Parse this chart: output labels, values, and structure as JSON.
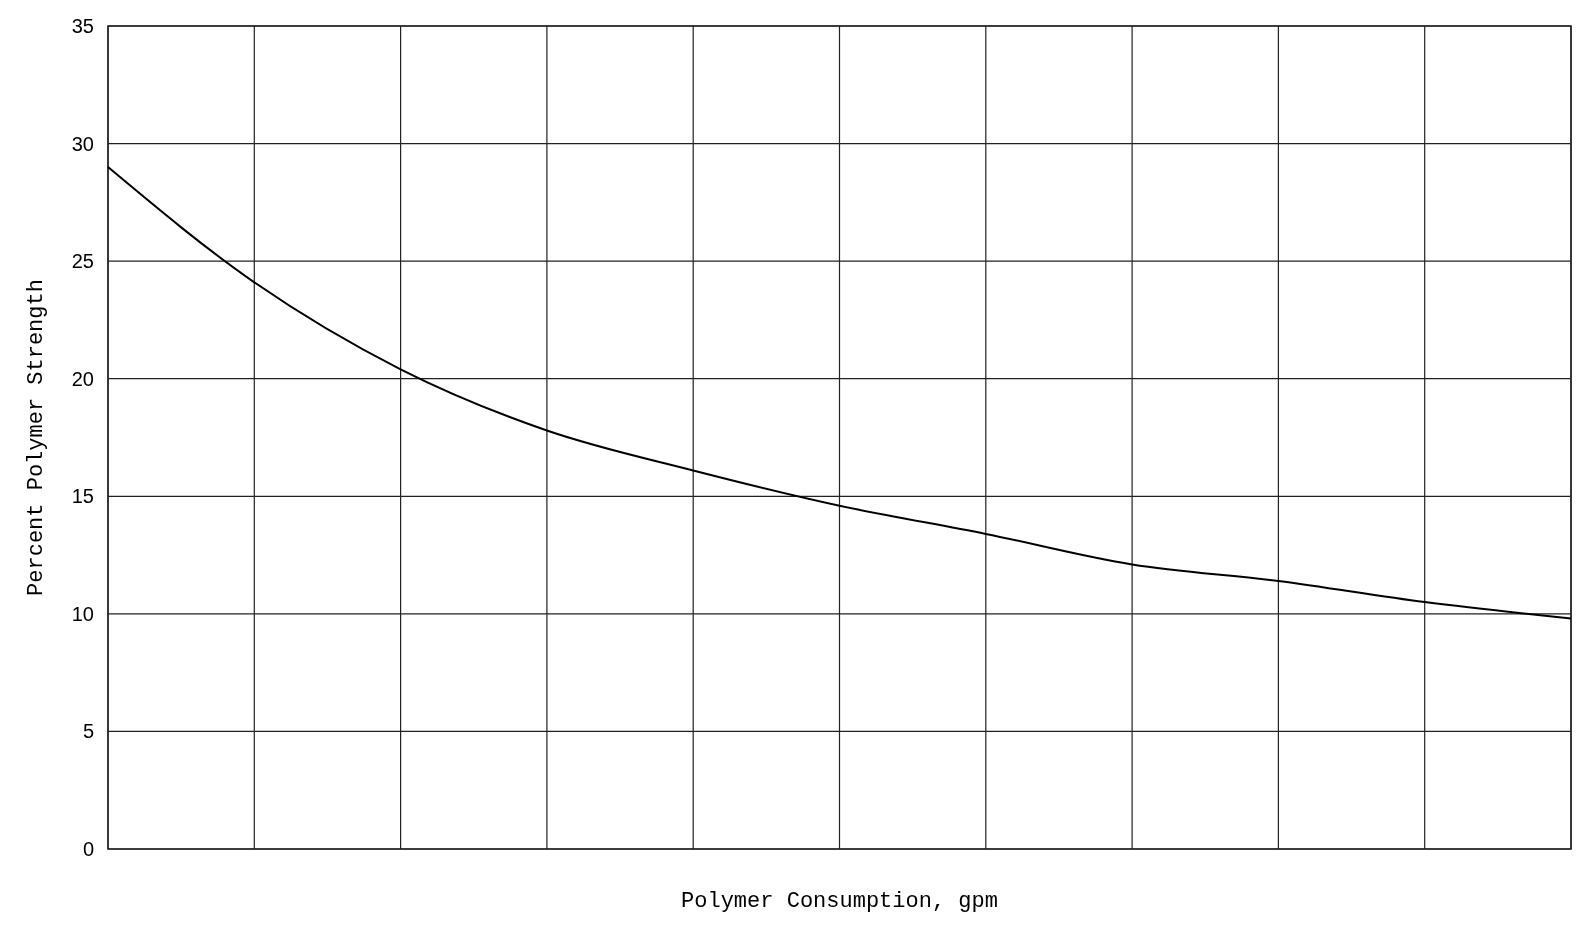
{
  "chart_data": {
    "type": "line",
    "xlabel": "Polymer Consumption, gpm",
    "ylabel": "Percent Polymer Strength",
    "categories": [
      null,
      null,
      null,
      null,
      null,
      null,
      null,
      null,
      null,
      null,
      null
    ],
    "series": [
      {
        "color": "#000000",
        "values": [
          29,
          24.1,
          20.4,
          17.8,
          16.1,
          14.6,
          13.4,
          12.1,
          11.4,
          10.5,
          9.8
        ]
      }
    ],
    "ylim": [
      0,
      35
    ],
    "yticks": [
      0,
      5,
      10,
      15,
      20,
      25,
      30,
      35
    ],
    "grid": true,
    "marker": "none",
    "line_style": "solid"
  }
}
